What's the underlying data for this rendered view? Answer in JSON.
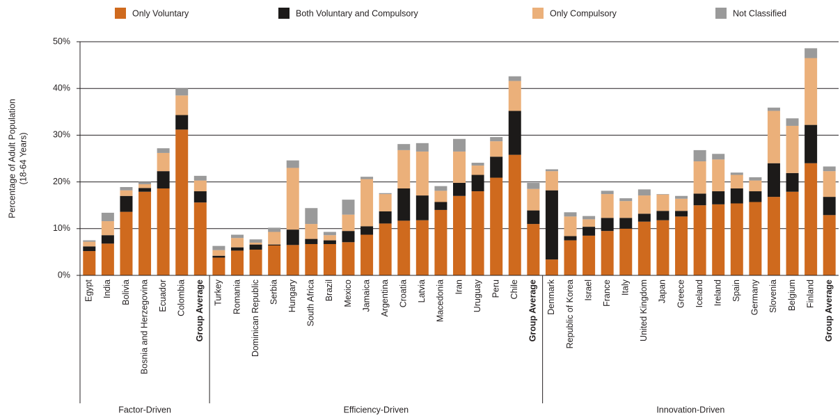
{
  "chart_data": {
    "type": "stacked_bar",
    "ylabel": [
      "Percentage of Adult Population",
      "(18-64 Years)"
    ],
    "ylim": [
      0,
      50
    ],
    "yticks": [
      {
        "value": 0,
        "label": "0%"
      },
      {
        "value": 10,
        "label": "10%"
      },
      {
        "value": 20,
        "label": "20%"
      },
      {
        "value": 30,
        "label": "30%"
      },
      {
        "value": 40,
        "label": "40%"
      },
      {
        "value": 50,
        "label": "50%"
      }
    ],
    "grid": true,
    "legend": "top",
    "groups": [
      {
        "name": "Factor-Driven",
        "categories": [
          "Egypt",
          "India",
          "Bolivia",
          "Bosnia and Herzegovina",
          "Ecuador",
          "Colombia",
          "Group Average"
        ]
      },
      {
        "name": "Efficiency-Driven",
        "categories": [
          "Turkey",
          "Romania",
          "Dominican Republic",
          "Serbia",
          "Hungary",
          "South Africa",
          "Brazil",
          "Mexico",
          "Jamaica",
          "Argentina",
          "Croatia",
          "Latvia",
          "Macedonia",
          "Iran",
          "Uruguay",
          "Peru",
          "Chile",
          "Group Average"
        ]
      },
      {
        "name": "Innovation-Driven",
        "categories": [
          "Denmark",
          "Republic of Korea",
          "Israel",
          "France",
          "Italy",
          "United Kingdom",
          "Japan",
          "Greece",
          "Iceland",
          "Ireland",
          "Spain",
          "Germany",
          "Slovenia",
          "Belgium",
          "Finland",
          "Group Average"
        ]
      }
    ],
    "series": [
      {
        "name": "Only Voluntary",
        "color": "#cf6a1e",
        "values": [
          5.2,
          6.8,
          13.6,
          17.9,
          18.6,
          31.2,
          15.6,
          3.8,
          5.3,
          5.5,
          6.4,
          6.5,
          6.7,
          6.7,
          7.1,
          8.7,
          11.1,
          11.7,
          11.8,
          14.0,
          17.0,
          18.0,
          20.9,
          25.8,
          11.0,
          3.4,
          7.5,
          8.5,
          9.5,
          10.0,
          11.5,
          11.8,
          12.6,
          15.0,
          15.2,
          15.4,
          15.7,
          16.8,
          17.9,
          24.0,
          12.9
        ]
      },
      {
        "name": "Both Voluntary and Compulsory",
        "color": "#1c1a19",
        "values": [
          1.0,
          1.8,
          3.4,
          0.8,
          3.7,
          3.1,
          2.4,
          0.4,
          0.7,
          1.1,
          0.2,
          3.3,
          1.1,
          0.8,
          2.4,
          1.8,
          2.6,
          6.9,
          5.3,
          1.7,
          2.8,
          3.5,
          4.5,
          9.4,
          2.9,
          14.8,
          0.9,
          1.9,
          2.8,
          2.3,
          1.7,
          2.0,
          1.2,
          2.5,
          2.8,
          3.2,
          2.3,
          7.2,
          4.0,
          8.2,
          3.9
        ]
      },
      {
        "name": "Only Compulsory",
        "color": "#ebb07a",
        "values": [
          1.0,
          3.0,
          1.2,
          0.8,
          3.9,
          4.2,
          2.3,
          1.2,
          2.0,
          0.4,
          2.7,
          13.2,
          3.2,
          1.1,
          3.5,
          10.1,
          3.7,
          8.2,
          9.4,
          2.4,
          6.7,
          2.0,
          3.3,
          6.4,
          4.6,
          4.1,
          4.2,
          1.6,
          5.1,
          3.6,
          3.9,
          3.5,
          2.6,
          6.9,
          6.8,
          2.9,
          2.3,
          11.2,
          10.1,
          14.3,
          5.5
        ]
      },
      {
        "name": "Not Classified",
        "color": "#9a9a9a",
        "values": [
          0.3,
          1.8,
          0.7,
          0.5,
          1.0,
          1.5,
          1.0,
          0.9,
          0.7,
          0.7,
          0.9,
          1.6,
          3.4,
          0.7,
          3.2,
          0.5,
          0.2,
          1.3,
          1.8,
          1.0,
          2.7,
          0.6,
          0.9,
          1.0,
          1.3,
          0.4,
          0.9,
          0.7,
          0.7,
          0.6,
          1.3,
          0.1,
          0.6,
          2.4,
          1.2,
          0.5,
          0.7,
          0.7,
          1.6,
          2.1,
          1.0
        ]
      }
    ]
  }
}
